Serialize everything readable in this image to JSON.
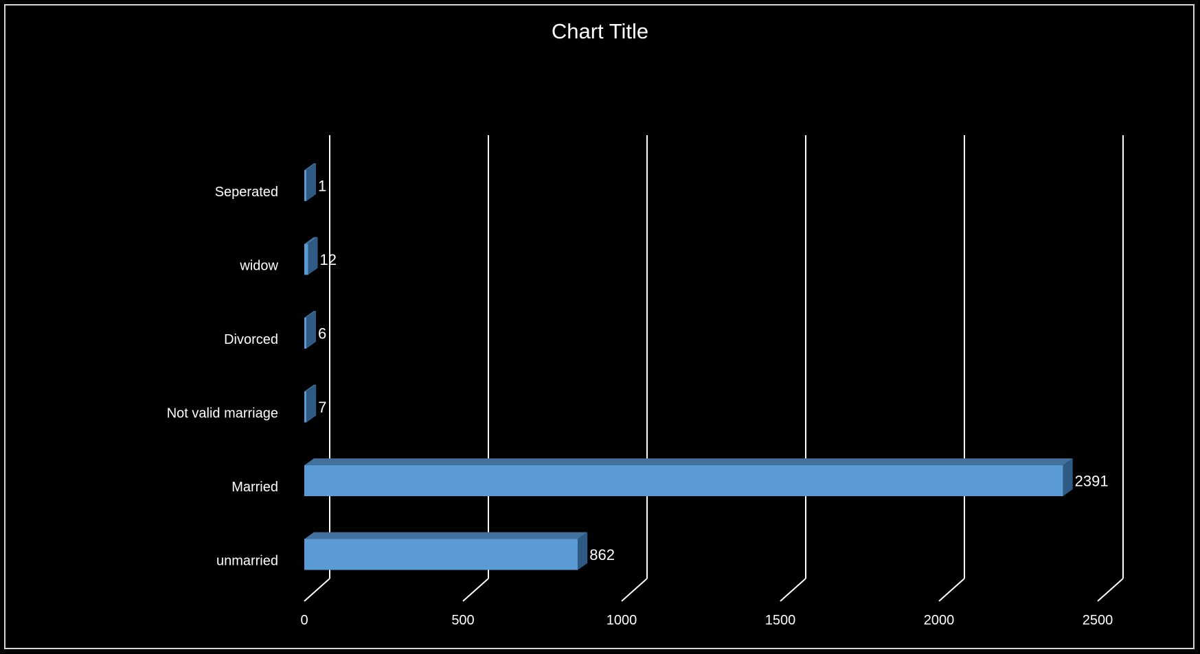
{
  "chart_data": {
    "type": "bar",
    "orientation": "horizontal",
    "three_d": true,
    "title": "Chart Title",
    "categories": [
      "unmarried",
      "Married",
      "Not valid marriage",
      "Divorced",
      "widow",
      "Seperated"
    ],
    "values": [
      862,
      2391,
      7,
      6,
      12,
      1
    ],
    "data_labels": [
      "862",
      "2391",
      "7",
      "6",
      "12",
      "1"
    ],
    "xlim": [
      0,
      2500
    ],
    "x_ticks": [
      0,
      500,
      1000,
      1500,
      2000,
      2500
    ],
    "x_tick_labels": [
      "0",
      "500",
      "1000",
      "1500",
      "2000",
      "2500"
    ],
    "grid": true,
    "legend": "none",
    "colors": {
      "background": "#000000",
      "bar_front": "#5b9bd5",
      "bar_top": "#41719c",
      "bar_side": "#2e5a84",
      "grid": "#ffffff",
      "text": "#ffffff"
    }
  }
}
